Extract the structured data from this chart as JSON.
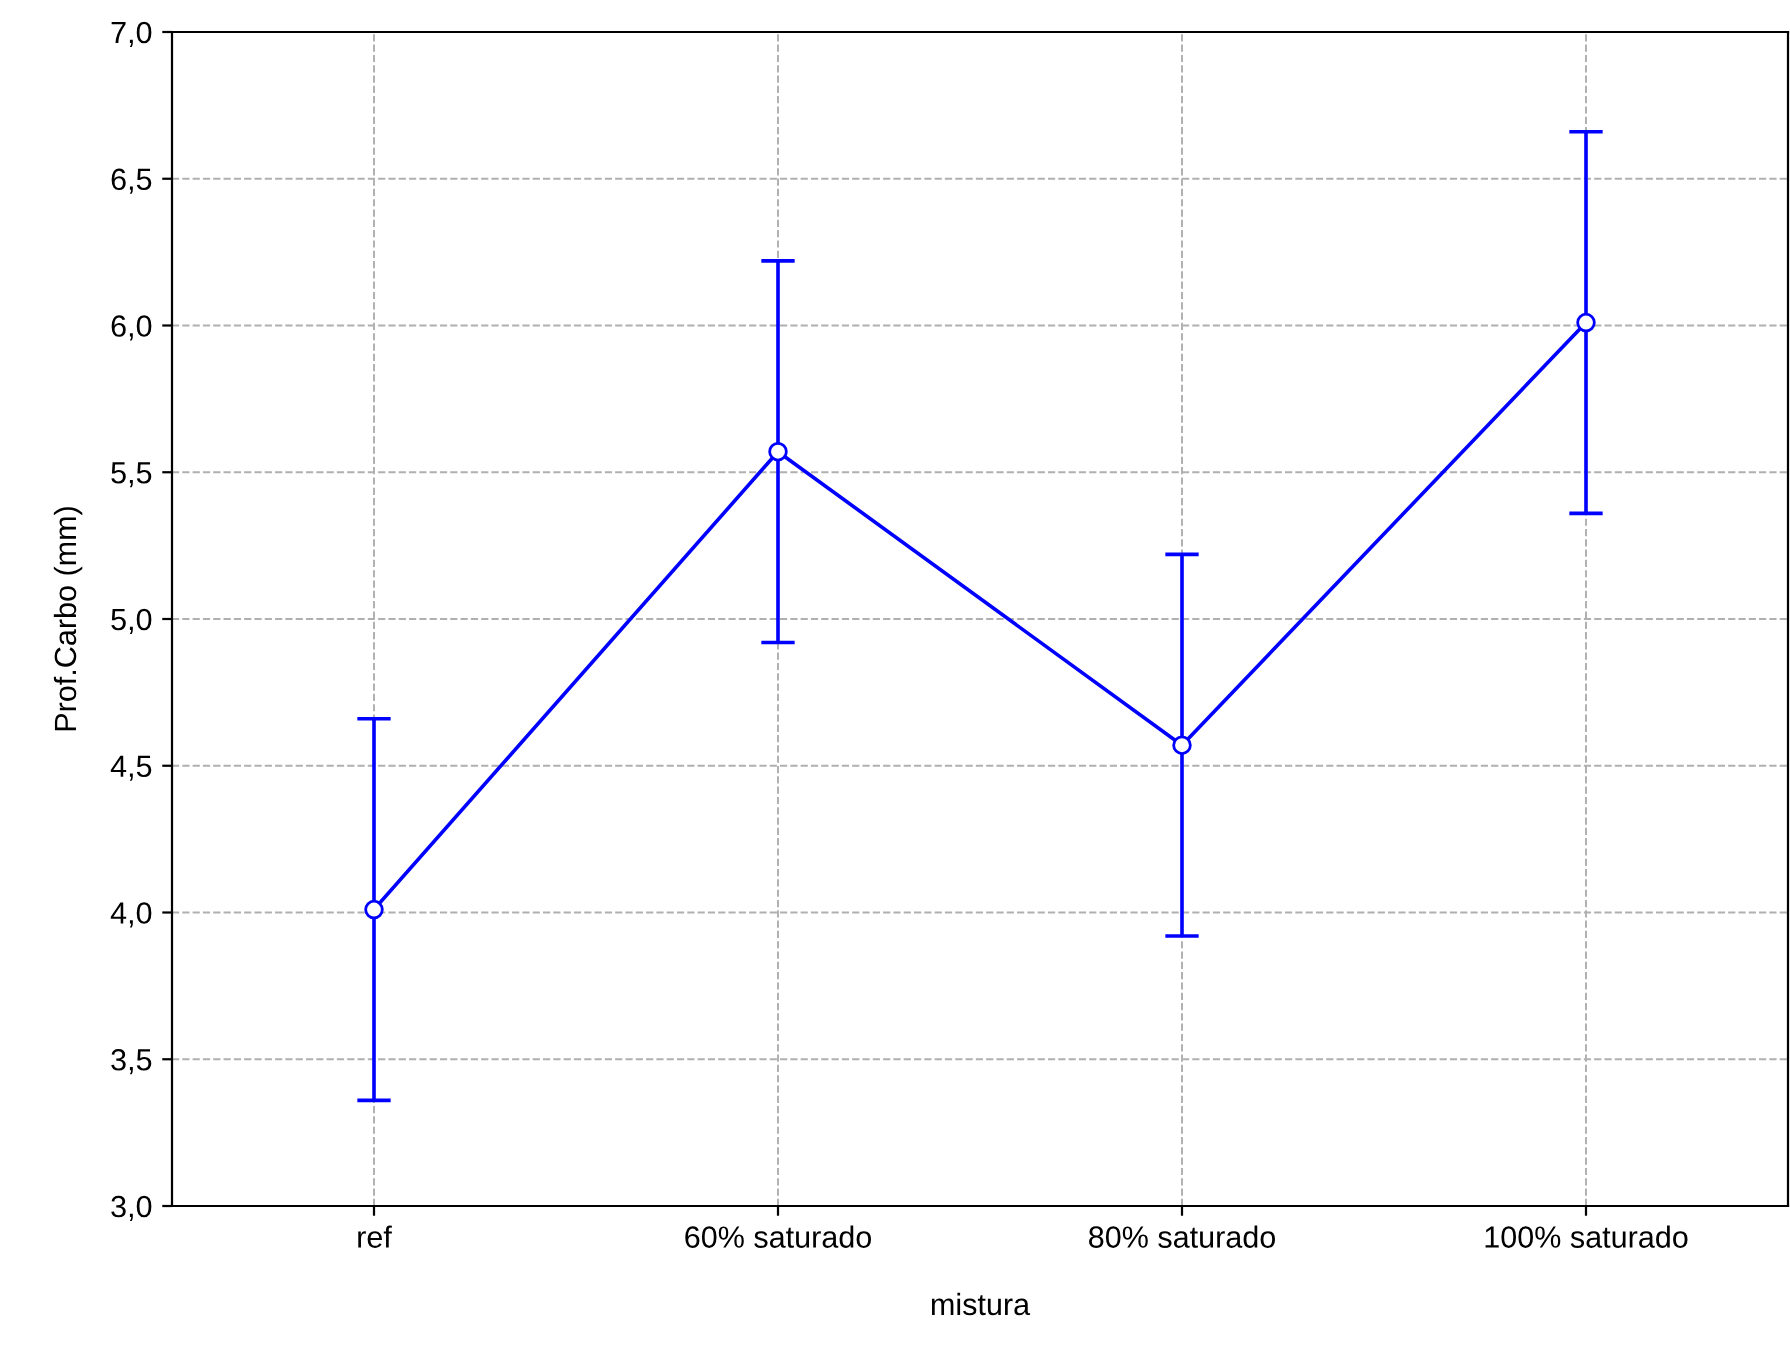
{
  "chart_data": {
    "type": "line",
    "xlabel": "mistura",
    "ylabel": "Prof.Carbo (mm)",
    "categories": [
      "ref",
      "60% saturado",
      "80% saturado",
      "100% saturado"
    ],
    "series": [
      {
        "color": "#0000ff",
        "values": [
          4.01,
          5.57,
          4.57,
          6.01
        ],
        "errors": [
          0.65,
          0.65,
          0.65,
          0.65
        ]
      }
    ],
    "ylim": [
      3.0,
      7.0
    ],
    "yticks": [
      {
        "value": 3.0,
        "label": "3,0"
      },
      {
        "value": 3.5,
        "label": "3,5"
      },
      {
        "value": 4.0,
        "label": "4,0"
      },
      {
        "value": 4.5,
        "label": "4,5"
      },
      {
        "value": 5.0,
        "label": "5,0"
      },
      {
        "value": 5.5,
        "label": "5,5"
      },
      {
        "value": 6.0,
        "label": "6,0"
      },
      {
        "value": 6.5,
        "label": "6,5"
      },
      {
        "value": 7.0,
        "label": "7,0"
      }
    ],
    "grid": true,
    "marker": "circle",
    "line_style": "solid"
  }
}
